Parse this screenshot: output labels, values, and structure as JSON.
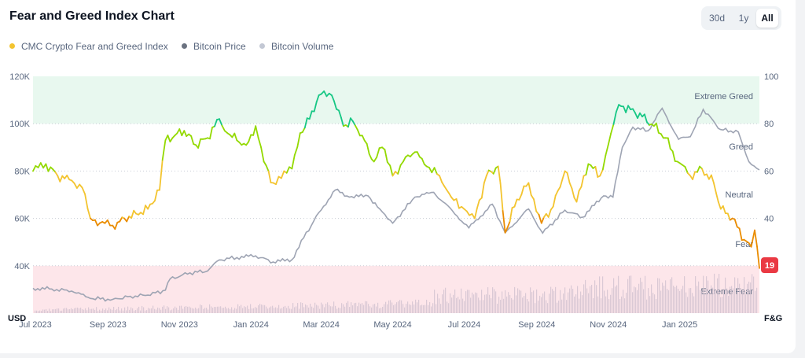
{
  "header": {
    "title": "Fear and Greed Index Chart"
  },
  "range_tabs": [
    {
      "label": "30d",
      "active": false
    },
    {
      "label": "1y",
      "active": false
    },
    {
      "label": "All",
      "active": true
    }
  ],
  "legend": [
    {
      "label": "CMC Crypto Fear and Greed Index",
      "color": "#f3c42f"
    },
    {
      "label": "Bitcoin Price",
      "color": "#6b7280"
    },
    {
      "label": "Bitcoin Volume",
      "color": "#c3c8d4"
    }
  ],
  "colors": {
    "extreme_greed_band": "#e8f8ef",
    "extreme_fear_band": "#fde6ea",
    "btc_price": "#9ea4b3",
    "btc_volume": "#cfc0cf",
    "current_badge": "#ea3943",
    "fg_scale": [
      "#ea3943",
      "#ea8c00",
      "#f3c42f",
      "#93d900",
      "#16c784"
    ]
  },
  "chart_data": {
    "type": "line",
    "x_labels": [
      "Jul 2023",
      "Sep 2023",
      "Nov 2023",
      "Jan 2024",
      "Mar 2024",
      "May 2024",
      "Jul 2024",
      "Sep 2024",
      "Nov 2024",
      "Jan 2025"
    ],
    "x_range": [
      "2023-06-29",
      "2025-03-10"
    ],
    "left_axis": {
      "unit": "USD",
      "ticks": [
        "40K",
        "60K",
        "80K",
        "100K",
        "120K"
      ],
      "ylim": [
        20000,
        120000
      ]
    },
    "right_axis": {
      "unit": "F&G",
      "ticks": [
        "40",
        "60",
        "80",
        "100"
      ],
      "ylim": [
        0,
        100
      ]
    },
    "zones": [
      "Extreme Greed",
      "Greed",
      "Neutral",
      "Fear",
      "Extreme Fear"
    ],
    "current_value": "19",
    "series": [
      {
        "name": "CMC Crypto Fear and Greed Index",
        "axis": "right",
        "points": [
          [
            "2023-06-29",
            60
          ],
          [
            "2023-07-10",
            63
          ],
          [
            "2023-07-20",
            58
          ],
          [
            "2023-08-01",
            56
          ],
          [
            "2023-08-10",
            53
          ],
          [
            "2023-08-17",
            40
          ],
          [
            "2023-08-25",
            38
          ],
          [
            "2023-09-05",
            37
          ],
          [
            "2023-09-15",
            40
          ],
          [
            "2023-09-25",
            42
          ],
          [
            "2023-10-05",
            44
          ],
          [
            "2023-10-15",
            52
          ],
          [
            "2023-10-20",
            73
          ],
          [
            "2023-10-28",
            75
          ],
          [
            "2023-11-05",
            77
          ],
          [
            "2023-11-15",
            71
          ],
          [
            "2023-11-25",
            74
          ],
          [
            "2023-12-05",
            82
          ],
          [
            "2023-12-12",
            76
          ],
          [
            "2023-12-20",
            73
          ],
          [
            "2023-12-28",
            71
          ],
          [
            "2024-01-05",
            79
          ],
          [
            "2024-01-12",
            64
          ],
          [
            "2024-01-20",
            55
          ],
          [
            "2024-01-27",
            57
          ],
          [
            "2024-02-05",
            61
          ],
          [
            "2024-02-12",
            76
          ],
          [
            "2024-02-20",
            82
          ],
          [
            "2024-02-28",
            92
          ],
          [
            "2024-03-10",
            92
          ],
          [
            "2024-03-20",
            79
          ],
          [
            "2024-03-28",
            81
          ],
          [
            "2024-04-05",
            75
          ],
          [
            "2024-04-15",
            64
          ],
          [
            "2024-04-22",
            70
          ],
          [
            "2024-05-01",
            58
          ],
          [
            "2024-05-10",
            64
          ],
          [
            "2024-05-20",
            68
          ],
          [
            "2024-05-30",
            62
          ],
          [
            "2024-06-10",
            58
          ],
          [
            "2024-06-20",
            49
          ],
          [
            "2024-07-01",
            44
          ],
          [
            "2024-07-10",
            40
          ],
          [
            "2024-07-20",
            58
          ],
          [
            "2024-07-30",
            62
          ],
          [
            "2024-08-05",
            34
          ],
          [
            "2024-08-15",
            48
          ],
          [
            "2024-08-25",
            55
          ],
          [
            "2024-09-05",
            38
          ],
          [
            "2024-09-15",
            45
          ],
          [
            "2024-09-25",
            60
          ],
          [
            "2024-10-05",
            47
          ],
          [
            "2024-10-15",
            63
          ],
          [
            "2024-10-25",
            58
          ],
          [
            "2024-11-01",
            71
          ],
          [
            "2024-11-10",
            88
          ],
          [
            "2024-11-20",
            86
          ],
          [
            "2024-11-30",
            83
          ],
          [
            "2024-12-10",
            79
          ],
          [
            "2024-12-20",
            74
          ],
          [
            "2024-12-30",
            64
          ],
          [
            "2025-01-10",
            58
          ],
          [
            "2025-01-20",
            61
          ],
          [
            "2025-01-30",
            55
          ],
          [
            "2025-02-05",
            44
          ],
          [
            "2025-02-15",
            40
          ],
          [
            "2025-02-25",
            31
          ],
          [
            "2025-03-03",
            28
          ],
          [
            "2025-03-06",
            35
          ],
          [
            "2025-03-10",
            19
          ]
        ]
      },
      {
        "name": "Bitcoin Price",
        "axis": "left",
        "points": [
          [
            "2023-06-29",
            30500
          ],
          [
            "2023-07-15",
            30200
          ],
          [
            "2023-08-01",
            29300
          ],
          [
            "2023-08-17",
            26200
          ],
          [
            "2023-09-05",
            25800
          ],
          [
            "2023-09-20",
            27100
          ],
          [
            "2023-10-05",
            27600
          ],
          [
            "2023-10-20",
            29700
          ],
          [
            "2023-10-24",
            34500
          ],
          [
            "2023-11-10",
            37000
          ],
          [
            "2023-11-25",
            37800
          ],
          [
            "2023-12-05",
            42500
          ],
          [
            "2023-12-20",
            43500
          ],
          [
            "2024-01-05",
            44200
          ],
          [
            "2024-01-20",
            41600
          ],
          [
            "2024-02-05",
            42600
          ],
          [
            "2024-02-15",
            51800
          ],
          [
            "2024-02-28",
            62500
          ],
          [
            "2024-03-13",
            72000
          ],
          [
            "2024-03-25",
            69000
          ],
          [
            "2024-04-10",
            69500
          ],
          [
            "2024-04-20",
            64000
          ],
          [
            "2024-05-01",
            58000
          ],
          [
            "2024-05-20",
            69000
          ],
          [
            "2024-06-05",
            71000
          ],
          [
            "2024-06-25",
            61000
          ],
          [
            "2024-07-05",
            56000
          ],
          [
            "2024-07-25",
            66000
          ],
          [
            "2024-08-05",
            54000
          ],
          [
            "2024-08-25",
            64000
          ],
          [
            "2024-09-06",
            53800
          ],
          [
            "2024-09-25",
            63500
          ],
          [
            "2024-10-10",
            60500
          ],
          [
            "2024-10-28",
            69500
          ],
          [
            "2024-11-05",
            69000
          ],
          [
            "2024-11-13",
            90000
          ],
          [
            "2024-11-22",
            98500
          ],
          [
            "2024-12-05",
            97000
          ],
          [
            "2024-12-17",
            106500
          ],
          [
            "2024-12-31",
            93400
          ],
          [
            "2025-01-10",
            94500
          ],
          [
            "2025-01-21",
            106000
          ],
          [
            "2025-02-05",
            97500
          ],
          [
            "2025-02-20",
            96500
          ],
          [
            "2025-03-01",
            84000
          ],
          [
            "2025-03-10",
            80500
          ]
        ]
      }
    ]
  }
}
